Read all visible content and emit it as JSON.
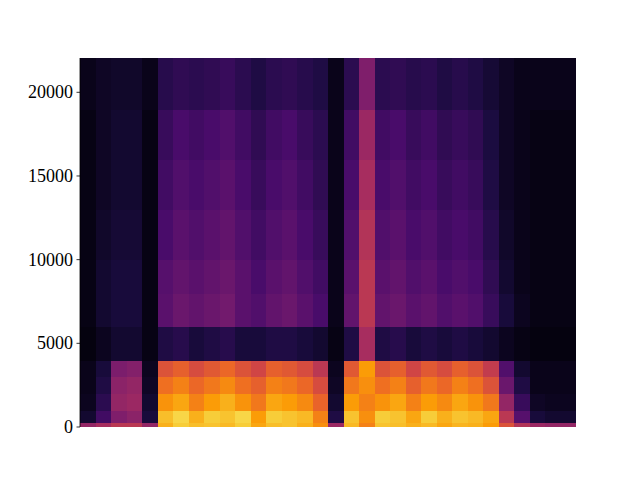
{
  "chart_data": {
    "type": "heatmap",
    "x_bins": [
      0,
      1,
      2,
      3,
      4,
      5,
      6,
      7,
      8,
      9,
      10,
      11,
      12,
      13,
      14,
      15,
      16,
      17,
      18,
      19,
      20,
      21,
      22,
      23,
      24,
      25,
      26,
      27,
      28,
      29,
      30,
      31,
      32
    ],
    "y_bins": [
      0,
      250,
      1000,
      2000,
      3000,
      4000,
      6000,
      8000,
      10000,
      13000,
      16000,
      19000,
      22050
    ],
    "cells": [
      [
        40,
        45,
        50,
        50,
        40,
        82,
        88,
        85,
        86,
        84,
        88,
        80,
        85,
        86,
        82,
        75,
        42,
        84,
        72,
        86,
        85,
        82,
        84,
        80,
        83,
        82,
        78,
        60,
        48,
        42,
        40,
        40
      ],
      [
        8,
        20,
        35,
        38,
        10,
        85,
        90,
        82,
        88,
        86,
        90,
        78,
        88,
        86,
        84,
        72,
        12,
        86,
        75,
        88,
        86,
        80,
        88,
        82,
        86,
        84,
        80,
        50,
        25,
        10,
        8,
        8
      ],
      [
        5,
        15,
        40,
        42,
        8,
        76,
        80,
        72,
        78,
        82,
        76,
        70,
        80,
        78,
        74,
        65,
        8,
        78,
        72,
        76,
        80,
        72,
        78,
        74,
        80,
        76,
        70,
        40,
        18,
        6,
        5,
        5
      ],
      [
        4,
        12,
        38,
        40,
        6,
        68,
        72,
        66,
        70,
        74,
        68,
        64,
        72,
        70,
        66,
        58,
        6,
        70,
        75,
        68,
        72,
        64,
        70,
        66,
        72,
        68,
        60,
        30,
        12,
        4,
        4,
        4
      ],
      [
        4,
        10,
        34,
        36,
        5,
        60,
        64,
        58,
        62,
        66,
        60,
        56,
        64,
        62,
        58,
        50,
        5,
        62,
        78,
        60,
        64,
        56,
        62,
        58,
        64,
        60,
        52,
        24,
        8,
        4,
        4,
        4
      ],
      [
        2,
        5,
        8,
        8,
        3,
        12,
        14,
        10,
        12,
        14,
        10,
        10,
        12,
        12,
        10,
        8,
        3,
        12,
        45,
        12,
        14,
        10,
        12,
        10,
        12,
        10,
        8,
        5,
        3,
        2,
        2,
        2
      ],
      [
        3,
        8,
        10,
        10,
        3,
        26,
        30,
        28,
        30,
        32,
        26,
        24,
        28,
        30,
        26,
        22,
        4,
        28,
        50,
        28,
        30,
        26,
        28,
        24,
        26,
        24,
        18,
        10,
        5,
        3,
        3,
        3
      ],
      [
        3,
        8,
        10,
        10,
        3,
        25,
        28,
        26,
        28,
        30,
        26,
        22,
        26,
        28,
        24,
        20,
        4,
        26,
        50,
        26,
        28,
        24,
        26,
        22,
        24,
        22,
        16,
        8,
        4,
        3,
        3,
        3
      ],
      [
        3,
        7,
        9,
        9,
        3,
        22,
        26,
        24,
        26,
        28,
        24,
        20,
        24,
        26,
        22,
        18,
        4,
        24,
        48,
        24,
        26,
        22,
        24,
        20,
        22,
        20,
        14,
        7,
        4,
        3,
        3,
        3
      ],
      [
        3,
        6,
        8,
        8,
        3,
        20,
        24,
        22,
        24,
        26,
        22,
        18,
        22,
        24,
        20,
        16,
        4,
        22,
        45,
        22,
        24,
        20,
        22,
        18,
        20,
        18,
        12,
        6,
        4,
        3,
        3,
        3
      ],
      [
        3,
        6,
        8,
        8,
        3,
        18,
        22,
        20,
        22,
        24,
        20,
        16,
        20,
        22,
        18,
        15,
        4,
        20,
        42,
        20,
        22,
        18,
        20,
        16,
        18,
        16,
        11,
        6,
        4,
        3,
        3,
        3
      ],
      [
        4,
        6,
        7,
        7,
        4,
        14,
        16,
        15,
        16,
        18,
        15,
        12,
        15,
        16,
        14,
        12,
        4,
        15,
        35,
        15,
        16,
        14,
        15,
        12,
        14,
        12,
        9,
        6,
        4,
        4,
        4,
        4
      ]
    ],
    "zlim": [
      0,
      100
    ],
    "xlim": [
      0,
      32
    ],
    "ylim": [
      0,
      22050
    ],
    "yticks": [
      0,
      5000,
      10000,
      15000,
      20000
    ],
    "tick_labels": "y"
  }
}
